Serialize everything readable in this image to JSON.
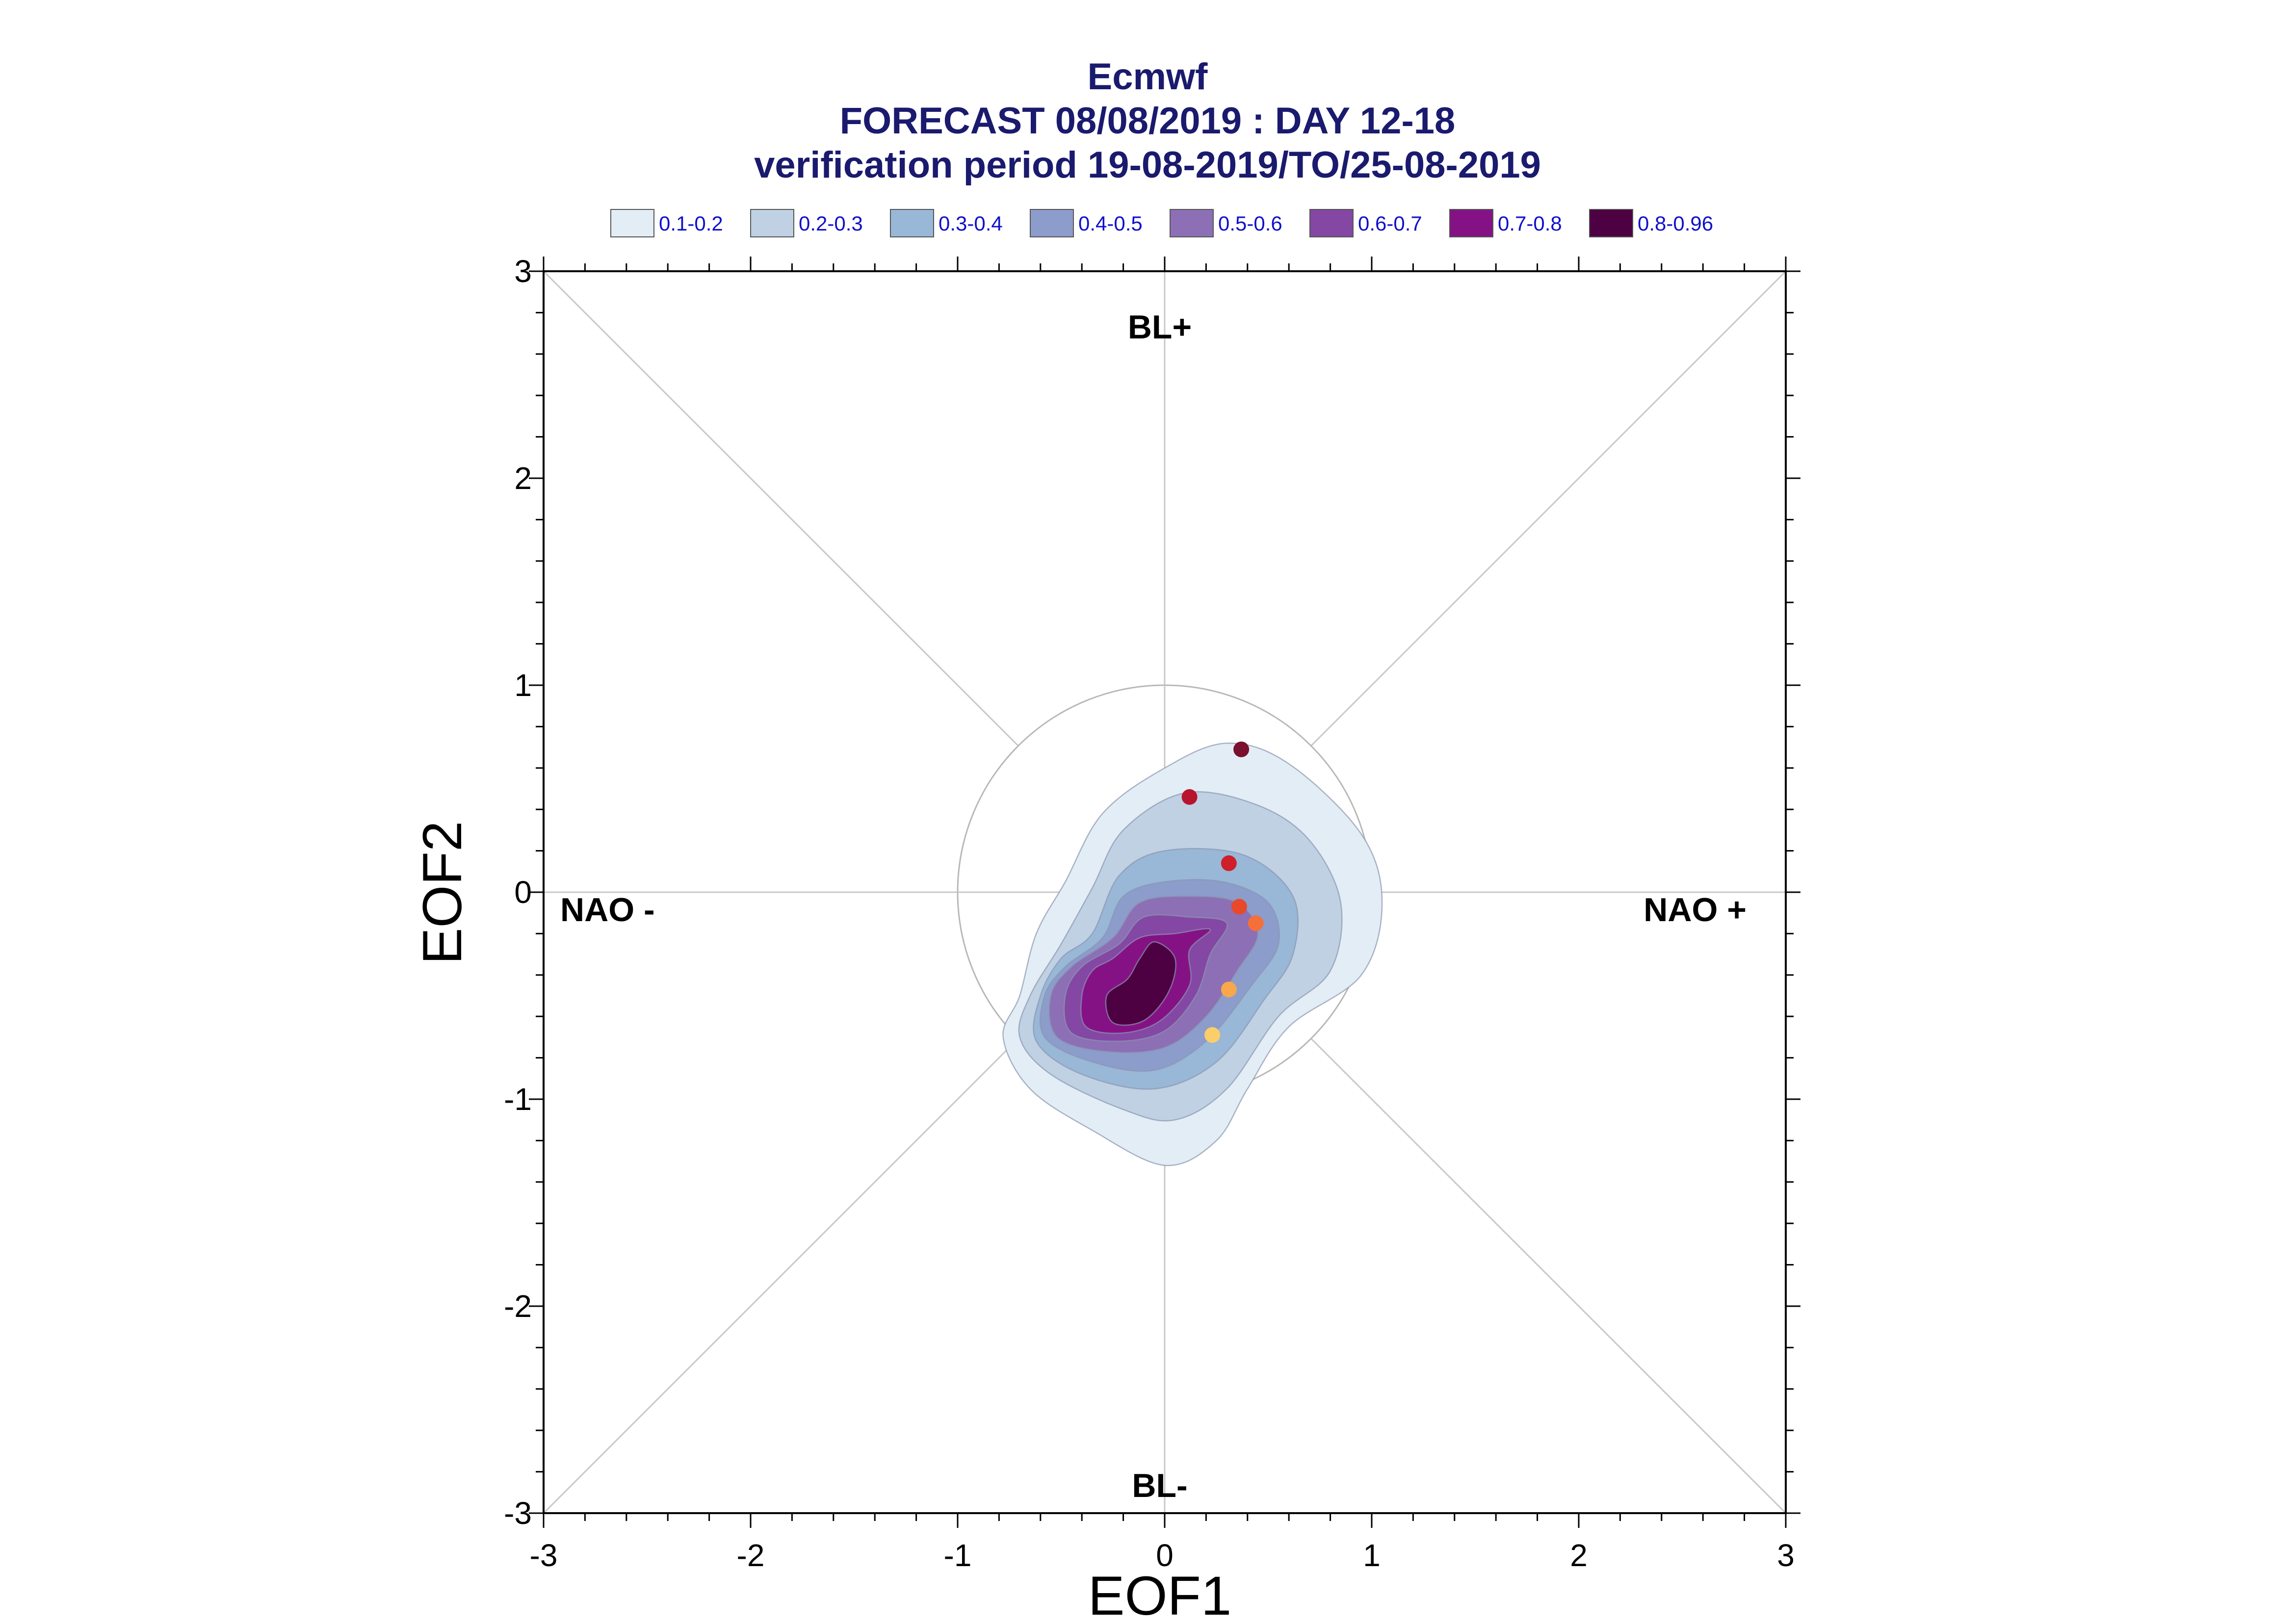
{
  "chart_data": {
    "type": "density-contour-scatter",
    "title_lines": [
      "Ecmwf",
      "FORECAST 08/08/2019 : DAY 12-18",
      "verification period 19-08-2019/TO/25-08-2019"
    ],
    "xlabel": "EOF1",
    "ylabel": "EOF2",
    "xlim": [
      -3,
      3
    ],
    "ylim": [
      -3,
      3
    ],
    "xticks": [
      "-3",
      "-2",
      "-1",
      "0",
      "1",
      "2",
      "3"
    ],
    "yticks": [
      "-3",
      "-2",
      "-1",
      "0",
      "1",
      "2",
      "3"
    ],
    "regime_labels": {
      "top": "BL+",
      "bottom": "BL-",
      "left": "NAO -",
      "right": "NAO +"
    },
    "reference_circle_radius": 1,
    "legend": [
      {
        "label": "0.1-0.2",
        "color": "#e3edf5"
      },
      {
        "label": "0.2-0.3",
        "color": "#bfd1e3"
      },
      {
        "label": "0.3-0.4",
        "color": "#99b7d6"
      },
      {
        "label": "0.4-0.5",
        "color": "#8c9ccb"
      },
      {
        "label": "0.5-0.6",
        "color": "#8c6fb5"
      },
      {
        "label": "0.6-0.7",
        "color": "#8447a3"
      },
      {
        "label": "0.7-0.8",
        "color": "#851285"
      },
      {
        "label": "0.8-0.96",
        "color": "#4d0042"
      }
    ],
    "density_contours": [
      {
        "level": "0.1-0.2",
        "points": [
          [
            -0.7,
            -0.5
          ],
          [
            -0.78,
            -0.7
          ],
          [
            -0.65,
            -0.95
          ],
          [
            -0.35,
            -1.15
          ],
          [
            0,
            -1.32
          ],
          [
            0.25,
            -1.2
          ],
          [
            0.4,
            -0.95
          ],
          [
            0.6,
            -0.65
          ],
          [
            0.95,
            -0.4
          ],
          [
            1.05,
            -0.05
          ],
          [
            0.95,
            0.28
          ],
          [
            0.6,
            0.62
          ],
          [
            0.3,
            0.72
          ],
          [
            0,
            0.6
          ],
          [
            -0.3,
            0.38
          ],
          [
            -0.48,
            0.05
          ],
          [
            -0.62,
            -0.2
          ]
        ]
      },
      {
        "level": "0.2-0.3",
        "points": [
          [
            -0.65,
            -0.5
          ],
          [
            -0.7,
            -0.7
          ],
          [
            -0.55,
            -0.88
          ],
          [
            -0.2,
            -1.05
          ],
          [
            0.05,
            -1.1
          ],
          [
            0.3,
            -0.95
          ],
          [
            0.55,
            -0.6
          ],
          [
            0.8,
            -0.38
          ],
          [
            0.85,
            -0.05
          ],
          [
            0.7,
            0.25
          ],
          [
            0.45,
            0.42
          ],
          [
            0.1,
            0.48
          ],
          [
            -0.2,
            0.3
          ],
          [
            -0.35,
            0.02
          ],
          [
            -0.5,
            -0.25
          ]
        ]
      },
      {
        "level": "0.3-0.4",
        "points": [
          [
            -0.6,
            -0.5
          ],
          [
            -0.62,
            -0.72
          ],
          [
            -0.4,
            -0.88
          ],
          [
            -0.05,
            -0.95
          ],
          [
            0.25,
            -0.82
          ],
          [
            0.48,
            -0.52
          ],
          [
            0.62,
            -0.3
          ],
          [
            0.62,
            -0.02
          ],
          [
            0.38,
            0.18
          ],
          [
            0,
            0.2
          ],
          [
            -0.22,
            0.08
          ],
          [
            -0.35,
            -0.2
          ],
          [
            -0.5,
            -0.32
          ]
        ]
      },
      {
        "level": "0.4-0.5",
        "points": [
          [
            -0.58,
            -0.5
          ],
          [
            -0.58,
            -0.7
          ],
          [
            -0.35,
            -0.82
          ],
          [
            -0.05,
            -0.86
          ],
          [
            0.2,
            -0.72
          ],
          [
            0.42,
            -0.45
          ],
          [
            0.55,
            -0.25
          ],
          [
            0.5,
            -0.05
          ],
          [
            0.28,
            0.05
          ],
          [
            0,
            0.05
          ],
          [
            -0.2,
            -0.02
          ],
          [
            -0.3,
            -0.22
          ],
          [
            -0.48,
            -0.36
          ]
        ]
      },
      {
        "level": "0.5-0.6",
        "points": [
          [
            -0.55,
            -0.5
          ],
          [
            -0.52,
            -0.7
          ],
          [
            -0.28,
            -0.77
          ],
          [
            0,
            -0.75
          ],
          [
            0.2,
            -0.6
          ],
          [
            0.35,
            -0.38
          ],
          [
            0.45,
            -0.2
          ],
          [
            0.35,
            -0.05
          ],
          [
            0.12,
            -0.02
          ],
          [
            -0.12,
            -0.05
          ],
          [
            -0.25,
            -0.22
          ],
          [
            -0.45,
            -0.36
          ]
        ]
      },
      {
        "level": "0.6-0.7",
        "points": [
          [
            -0.48,
            -0.5
          ],
          [
            -0.45,
            -0.68
          ],
          [
            -0.22,
            -0.72
          ],
          [
            0,
            -0.67
          ],
          [
            0.15,
            -0.5
          ],
          [
            0.22,
            -0.3
          ],
          [
            0.3,
            -0.15
          ],
          [
            0.12,
            -0.12
          ],
          [
            -0.1,
            -0.12
          ],
          [
            -0.22,
            -0.25
          ],
          [
            -0.4,
            -0.36
          ]
        ]
      },
      {
        "level": "0.7-0.8",
        "points": [
          [
            -0.4,
            -0.5
          ],
          [
            -0.38,
            -0.65
          ],
          [
            -0.2,
            -0.68
          ],
          [
            -0.02,
            -0.62
          ],
          [
            0.12,
            -0.45
          ],
          [
            0.12,
            -0.28
          ],
          [
            0.22,
            -0.18
          ],
          [
            0.05,
            -0.2
          ],
          [
            -0.12,
            -0.22
          ],
          [
            -0.25,
            -0.32
          ],
          [
            -0.35,
            -0.38
          ]
        ]
      },
      {
        "level": "0.8-0.96",
        "points": [
          [
            -0.28,
            -0.5
          ],
          [
            -0.25,
            -0.63
          ],
          [
            -0.1,
            -0.62
          ],
          [
            0.02,
            -0.48
          ],
          [
            0.05,
            -0.32
          ],
          [
            -0.05,
            -0.24
          ],
          [
            -0.12,
            -0.32
          ],
          [
            -0.18,
            -0.42
          ]
        ]
      }
    ],
    "points": [
      {
        "x": 0.37,
        "y": 0.69,
        "color": "#7a0f2e"
      },
      {
        "x": 0.12,
        "y": 0.46,
        "color": "#b8142e"
      },
      {
        "x": 0.31,
        "y": 0.14,
        "color": "#cf1f2b"
      },
      {
        "x": 0.36,
        "y": -0.07,
        "color": "#e8492a"
      },
      {
        "x": 0.44,
        "y": -0.15,
        "color": "#f4703a"
      },
      {
        "x": 0.31,
        "y": -0.47,
        "color": "#f8a84a"
      },
      {
        "x": 0.23,
        "y": -0.69,
        "color": "#fcce6a"
      }
    ]
  }
}
